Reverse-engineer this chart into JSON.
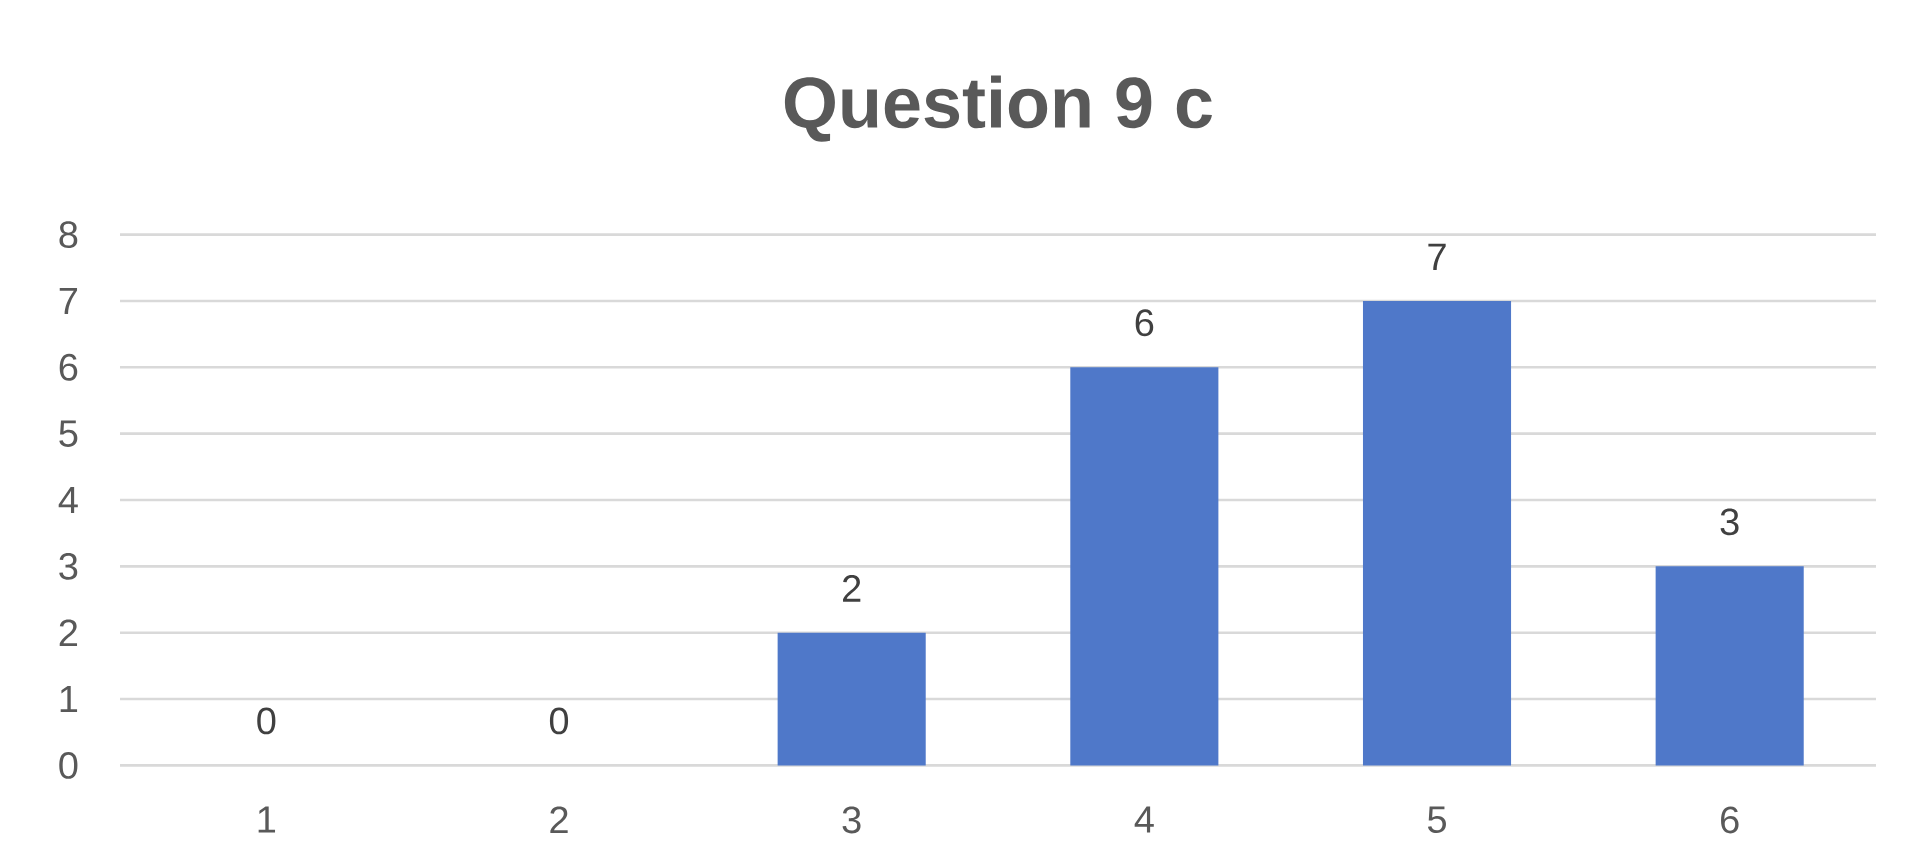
{
  "chart_data": {
    "type": "bar",
    "title": "Question 9 c",
    "categories": [
      "1",
      "2",
      "3",
      "4",
      "5",
      "6"
    ],
    "values": [
      0,
      0,
      2,
      6,
      7,
      3
    ],
    "color": "#4f78c9",
    "ylim": [
      0,
      8
    ],
    "yticks": [
      0,
      1,
      2,
      3,
      4,
      5,
      6,
      7,
      8
    ],
    "grid": "y",
    "data_labels": true
  }
}
